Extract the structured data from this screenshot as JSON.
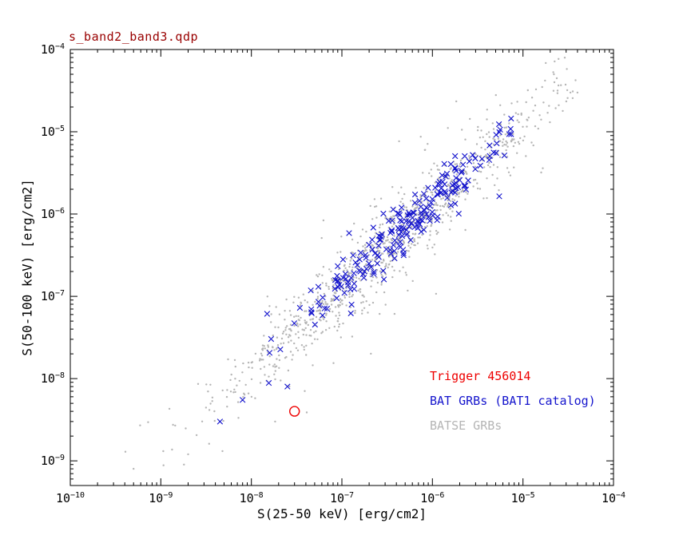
{
  "title": "s_band2_band3.qdp",
  "colors": {
    "background": "#ffffff",
    "frame": "#000000",
    "title_text": "#990000",
    "axis_text": "#000000",
    "trigger_red": "#ee0000",
    "bat_blue": "#1515cd",
    "batse_gray": "#b5b5b5"
  },
  "axes": {
    "x": {
      "label": "S(25-50 keV) [erg/cm2]",
      "scale": "log",
      "log_min": -10,
      "log_max": -4,
      "tick_exponents": [
        -10,
        -9,
        -8,
        -7,
        -6,
        -5,
        -4
      ],
      "tick_labels": [
        "10^-10",
        "10^-9",
        "10^-8",
        "10^-7",
        "10^-6",
        "10^-5",
        "10^-4"
      ]
    },
    "y": {
      "label": "S(50-100 keV) [erg/cm2]",
      "scale": "log",
      "log_min": -9.3,
      "log_max": -4,
      "tick_exponents": [
        -9,
        -8,
        -7,
        -6,
        -5,
        -4
      ],
      "tick_labels": [
        "10^-9",
        "10^-8",
        "10^-7",
        "10^-6",
        "10^-5",
        "10^-4"
      ]
    }
  },
  "legend": [
    {
      "label": "Trigger 456014",
      "color": "#ee0000"
    },
    {
      "label": "BAT GRBs (BAT1 catalog)",
      "color": "#1515cd"
    },
    {
      "label": "BATSE GRBs",
      "color": "#b5b5b5"
    }
  ],
  "chart_data": {
    "type": "scatter",
    "title": "s_band2_band3.qdp",
    "xlabel": "S(25-50 keV) [erg/cm2]",
    "ylabel": "S(50-100 keV) [erg/cm2]",
    "xscale": "log",
    "yscale": "log",
    "xlim": [
      1e-10,
      0.0001
    ],
    "ylim": [
      5e-10,
      0.0001
    ],
    "grid": false,
    "legend_position": "lower-right inside plot",
    "seed": 20121,
    "series": [
      {
        "name": "Trigger 456014",
        "marker": "open-circle",
        "color": "#ee0000",
        "points": [
          [
            3e-08,
            4e-09
          ]
        ]
      },
      {
        "name": "BAT GRBs (BAT1 catalog)",
        "marker": "x",
        "color": "#1515cd",
        "n": 225,
        "points_estimated": true,
        "distribution": {
          "logx_mean": -6.2,
          "logx_sd": 0.68,
          "logx_min": -8.6,
          "logx_max": -5.05,
          "logy_offset": 0.12,
          "logy_scatter_sd": 0.13,
          "outlier_fraction": 0.12,
          "outlier_sd": 0.3
        },
        "extra_points": [
          [
            7.4e-06,
            1.45e-05
          ],
          [
            8e-09,
            5.5e-09
          ],
          [
            2.5e-08,
            8e-09
          ],
          [
            4.5e-09,
            3e-09
          ]
        ]
      },
      {
        "name": "BATSE GRBs",
        "marker": "dot",
        "color": "#b5b5b5",
        "n": 1050,
        "points_estimated": true,
        "distribution": {
          "logx_mean": -6.5,
          "logx_sd": 0.95,
          "logx_min": -9.45,
          "logx_max": -4.4,
          "logy_offset": 0.1,
          "logy_scatter_sd": 0.22,
          "outlier_fraction": 0.18,
          "outlier_sd": 0.45
        },
        "extra_points": [
          [
            4e-05,
            3e-05
          ],
          [
            1.3e-05,
            1.8e-05
          ],
          [
            5e-10,
            8e-10
          ],
          [
            2e-09,
            1.2e-09
          ],
          [
            1.8e-09,
            9e-10
          ]
        ]
      }
    ]
  }
}
